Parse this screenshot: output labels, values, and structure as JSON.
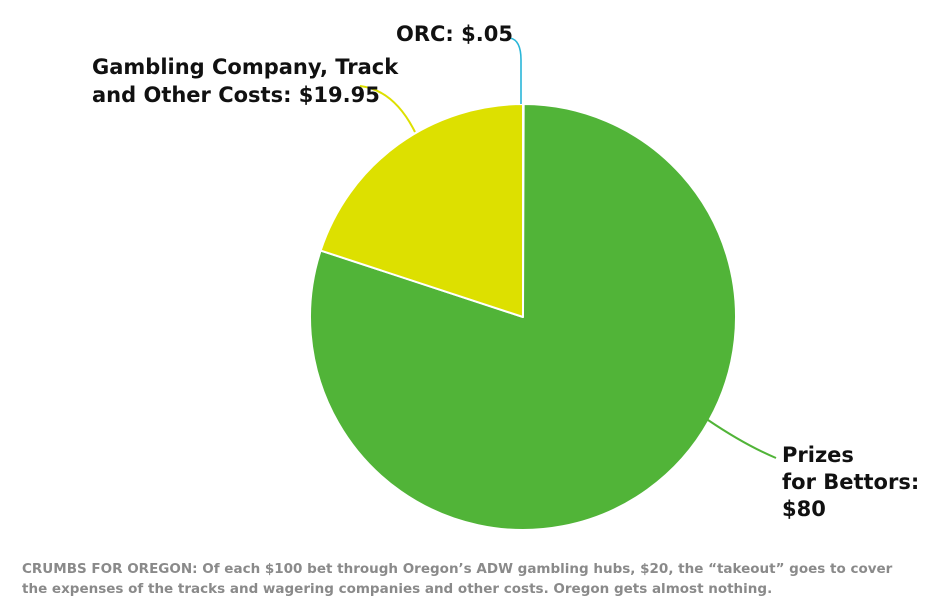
{
  "chart_data": {
    "type": "pie",
    "slices": [
      {
        "label_lines": [
          "ORC: $.05"
        ],
        "value": 0.05,
        "color": "#29b6d8"
      },
      {
        "label_lines": [
          "Prizes",
          "for Bettors:",
          "$80"
        ],
        "value": 80,
        "color": "#51b438"
      },
      {
        "label_lines": [
          "Gambling Company, Track",
          "and Other Costs: $19.95"
        ],
        "value": 19.95,
        "color": "#dde000"
      }
    ],
    "total": 100,
    "start_angle_deg": 0,
    "direction": "clockwise"
  },
  "caption": "CRUMBS FOR OREGON: Of each $100 bet through Oregon’s ADW gambling hubs, $20, the “takeout” goes to cover the expenses of the tracks and wagering companies and other costs. Oregon gets almost nothing."
}
